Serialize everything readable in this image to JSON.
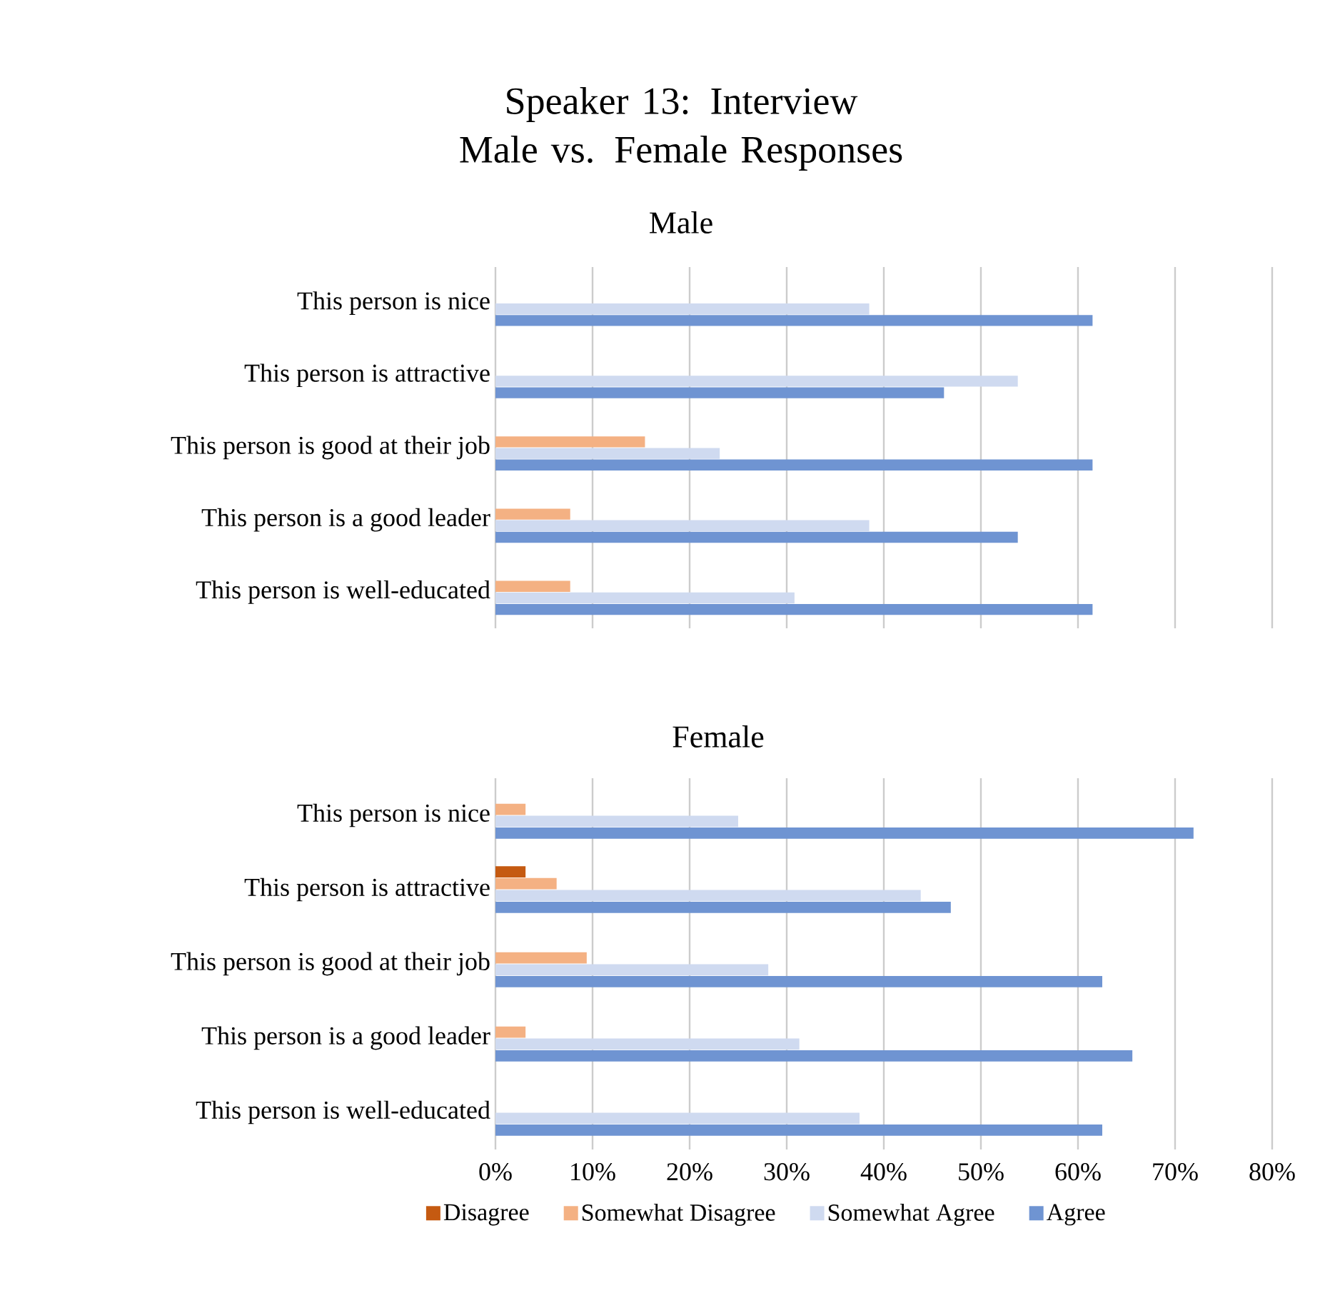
{
  "chart_data": [
    {
      "type": "bar",
      "orientation": "horizontal",
      "title": "Speaker 13: Interview Male vs. Female Responses",
      "subtitle": "Male",
      "categories": [
        "This person is nice",
        "This person is attractive",
        "This person is good at their job",
        "This person is a good leader",
        "This person is well-educated"
      ],
      "series": [
        {
          "color": "#f4b183",
          "values": [
            null,
            null,
            15.4,
            7.7,
            7.7
          ]
        },
        {
          "color": "#cfdaf0",
          "values": [
            38.5,
            53.8,
            23.1,
            38.5,
            30.8
          ]
        },
        {
          "color": "#6f94d2",
          "values": [
            61.5,
            46.2,
            61.5,
            53.8,
            61.5
          ]
        }
      ],
      "xlim": [
        0,
        80
      ],
      "xticks": [
        {
          "value": 0,
          "label": null
        },
        {
          "value": 10,
          "label": null
        },
        {
          "value": 20,
          "label": null
        },
        {
          "value": 30,
          "label": null
        },
        {
          "value": 40,
          "label": null
        },
        {
          "value": 50,
          "label": null
        },
        {
          "value": 60,
          "label": null
        },
        {
          "value": 70,
          "label": null
        },
        {
          "value": 80,
          "label": null
        }
      ],
      "grid": "x",
      "tick_labels": "y",
      "legend": false
    },
    {
      "type": "bar",
      "orientation": "horizontal",
      "title": "Female",
      "categories": [
        "This person is nice",
        "This person is attractive",
        "This person is good at their job",
        "This person is a good leader",
        "This person is well-educated"
      ],
      "series": [
        {
          "name": "Disagree",
          "color": "#c55a11",
          "values": [
            null,
            3.1,
            null,
            null,
            null
          ]
        },
        {
          "name": "Somewhat Disagree",
          "color": "#f4b183",
          "values": [
            3.1,
            6.3,
            9.4,
            3.1,
            null
          ]
        },
        {
          "name": "Somewhat Agree",
          "color": "#cfdaf0",
          "values": [
            25.0,
            43.8,
            28.1,
            31.3,
            37.5
          ]
        },
        {
          "name": "Agree",
          "color": "#6f94d2",
          "values": [
            71.9,
            46.9,
            62.5,
            65.6,
            62.5
          ]
        }
      ],
      "xlim": [
        0,
        80
      ],
      "xticks": [
        {
          "value": 0,
          "label": "0%"
        },
        {
          "value": 10,
          "label": "10%"
        },
        {
          "value": 20,
          "label": "20%"
        },
        {
          "value": 30,
          "label": "30%"
        },
        {
          "value": 40,
          "label": "40%"
        },
        {
          "value": 50,
          "label": "50%"
        },
        {
          "value": 60,
          "label": "60%"
        },
        {
          "value": 70,
          "label": "70%"
        },
        {
          "value": 80,
          "label": "80%"
        }
      ],
      "grid": "x",
      "legend": "bottom"
    }
  ]
}
